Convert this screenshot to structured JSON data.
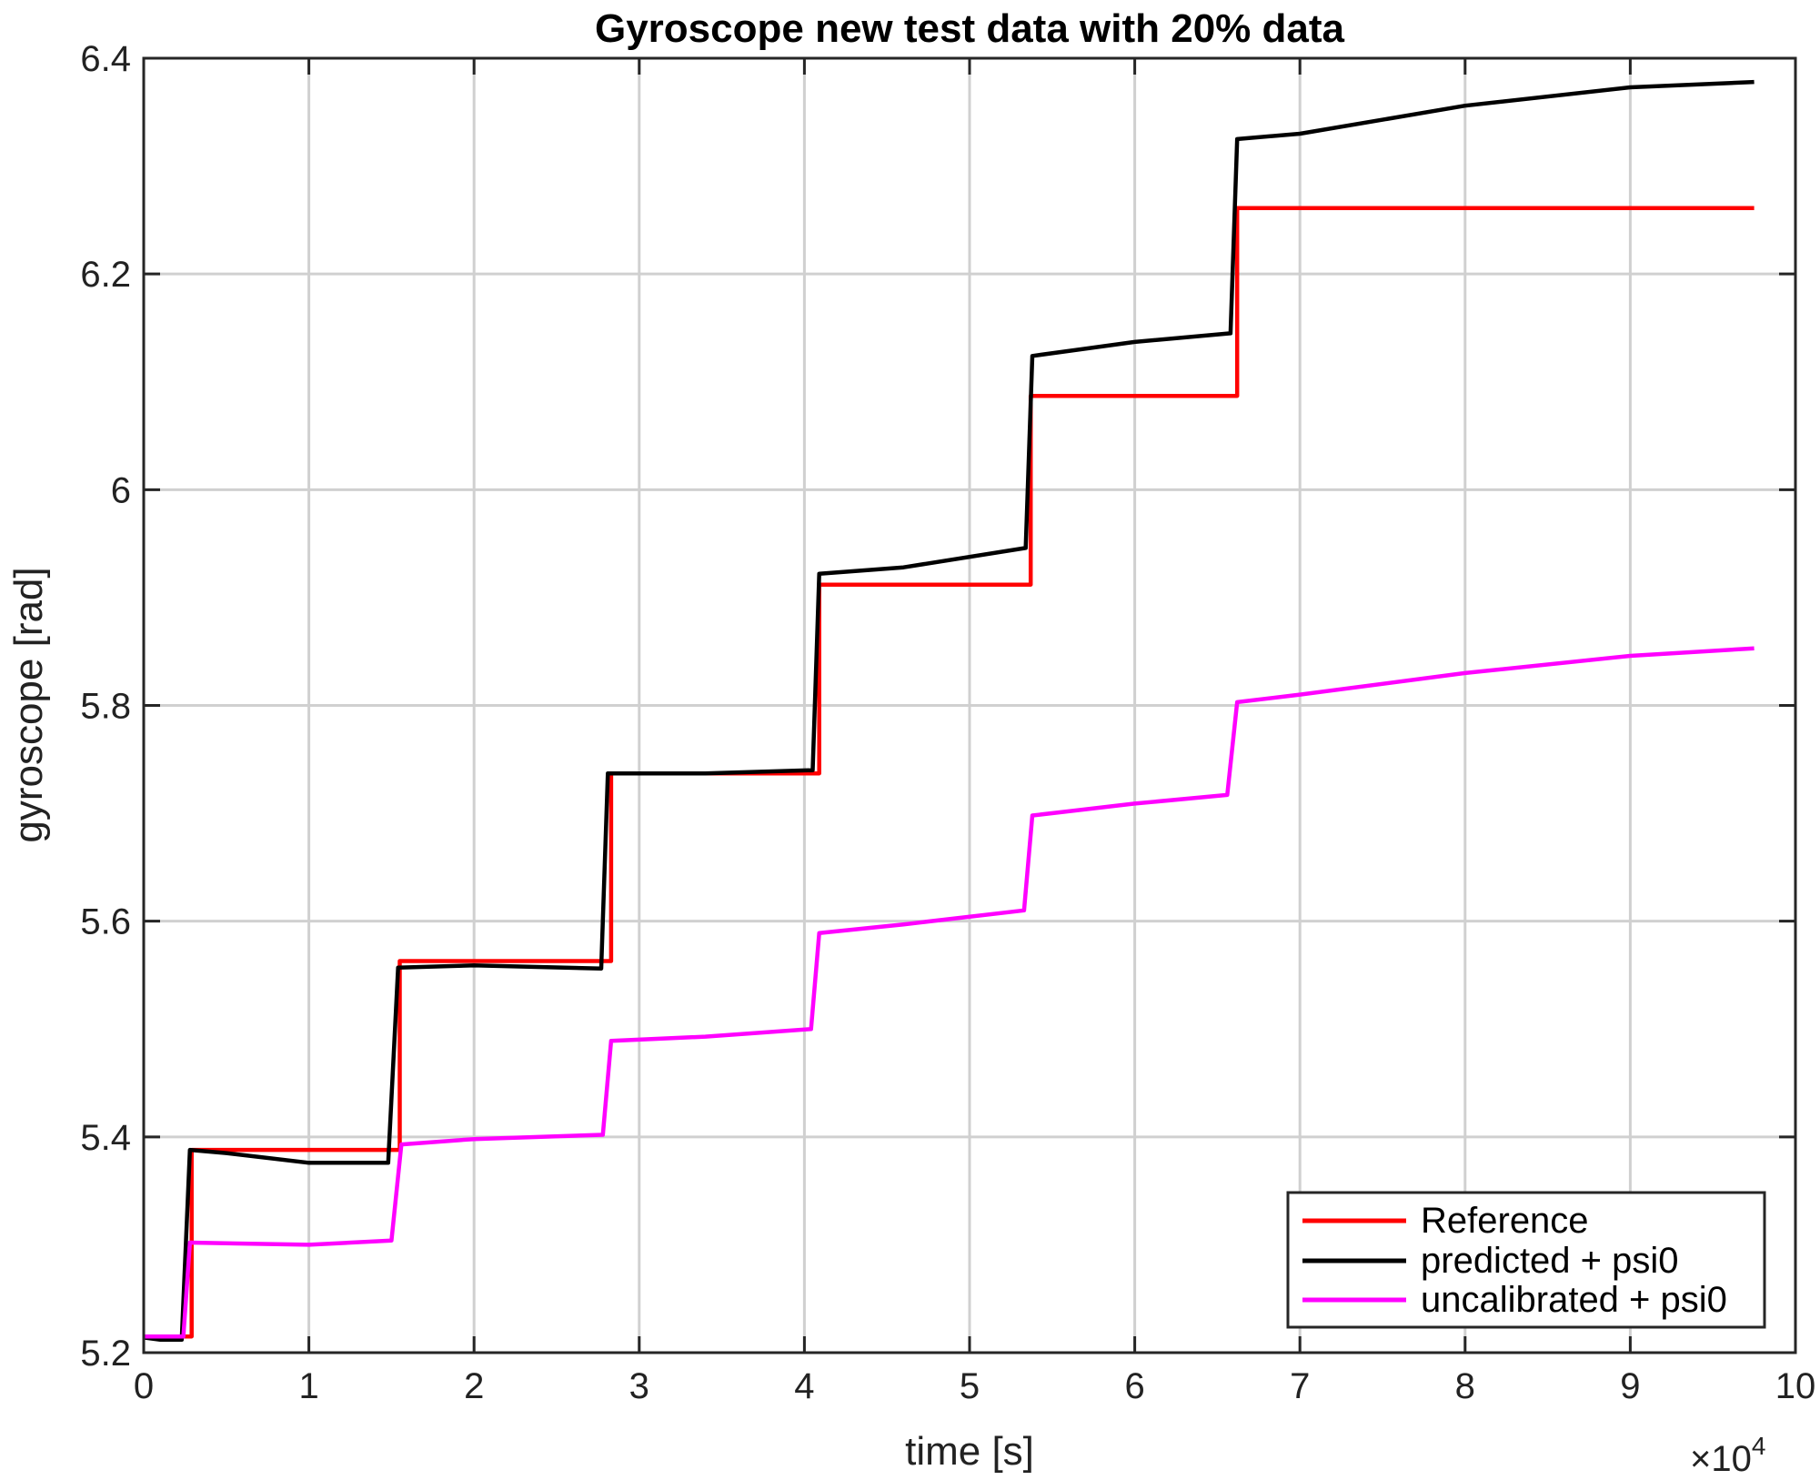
{
  "chart_data": {
    "type": "line",
    "title": "Gyroscope new test data with 20% data",
    "xlabel": "time [s]",
    "ylabel": "gyroscope [rad]",
    "x_exponent_label": "×10",
    "x_exponent_power": "4",
    "xlim": [
      0,
      100000
    ],
    "ylim": [
      5.2,
      6.4
    ],
    "x_ticks": [
      0,
      10000,
      20000,
      30000,
      40000,
      50000,
      60000,
      70000,
      80000,
      90000,
      100000
    ],
    "x_tick_labels": [
      "0",
      "1",
      "2",
      "3",
      "4",
      "5",
      "6",
      "7",
      "8",
      "9",
      "10"
    ],
    "y_ticks": [
      5.2,
      5.4,
      5.6,
      5.8,
      6.0,
      6.2,
      6.4
    ],
    "y_tick_labels": [
      "5.2",
      "5.4",
      "5.6",
      "5.8",
      "6",
      "6.2",
      "6.4"
    ],
    "grid": true,
    "legend_position": "bottom-right",
    "series": [
      {
        "name": "Reference",
        "color": "#ff0000",
        "points": [
          [
            0,
            5.215
          ],
          [
            2900,
            5.215
          ],
          [
            2900,
            5.388
          ],
          [
            15500,
            5.388
          ],
          [
            15500,
            5.563
          ],
          [
            28300,
            5.563
          ],
          [
            28300,
            5.737
          ],
          [
            40900,
            5.737
          ],
          [
            40900,
            5.912
          ],
          [
            53700,
            5.912
          ],
          [
            53700,
            6.087
          ],
          [
            66200,
            6.087
          ],
          [
            66200,
            6.261
          ],
          [
            97500,
            6.261
          ]
        ]
      },
      {
        "name": "predicted + psi0",
        "color": "#000000",
        "points": [
          [
            0,
            5.214
          ],
          [
            1000,
            5.212
          ],
          [
            2300,
            5.212
          ],
          [
            2800,
            5.388
          ],
          [
            5000,
            5.385
          ],
          [
            10000,
            5.376
          ],
          [
            14800,
            5.376
          ],
          [
            15400,
            5.557
          ],
          [
            20000,
            5.559
          ],
          [
            27700,
            5.556
          ],
          [
            28100,
            5.737
          ],
          [
            34000,
            5.737
          ],
          [
            40500,
            5.74
          ],
          [
            40900,
            5.922
          ],
          [
            46000,
            5.928
          ],
          [
            53400,
            5.946
          ],
          [
            53800,
            6.124
          ],
          [
            60000,
            6.137
          ],
          [
            65800,
            6.145
          ],
          [
            66200,
            6.325
          ],
          [
            70000,
            6.33
          ],
          [
            80000,
            6.356
          ],
          [
            90000,
            6.373
          ],
          [
            97500,
            6.378
          ]
        ]
      },
      {
        "name": "uncalibrated + psi0",
        "color": "#ff00ff",
        "points": [
          [
            0,
            5.215
          ],
          [
            2400,
            5.215
          ],
          [
            2800,
            5.302
          ],
          [
            10000,
            5.3
          ],
          [
            15000,
            5.304
          ],
          [
            15600,
            5.393
          ],
          [
            20000,
            5.398
          ],
          [
            27800,
            5.402
          ],
          [
            28300,
            5.489
          ],
          [
            34000,
            5.493
          ],
          [
            40400,
            5.5
          ],
          [
            40900,
            5.589
          ],
          [
            46000,
            5.597
          ],
          [
            53300,
            5.61
          ],
          [
            53800,
            5.698
          ],
          [
            60000,
            5.709
          ],
          [
            65600,
            5.717
          ],
          [
            66200,
            5.803
          ],
          [
            70000,
            5.81
          ],
          [
            80000,
            5.83
          ],
          [
            90000,
            5.846
          ],
          [
            97500,
            5.853
          ]
        ]
      }
    ]
  }
}
